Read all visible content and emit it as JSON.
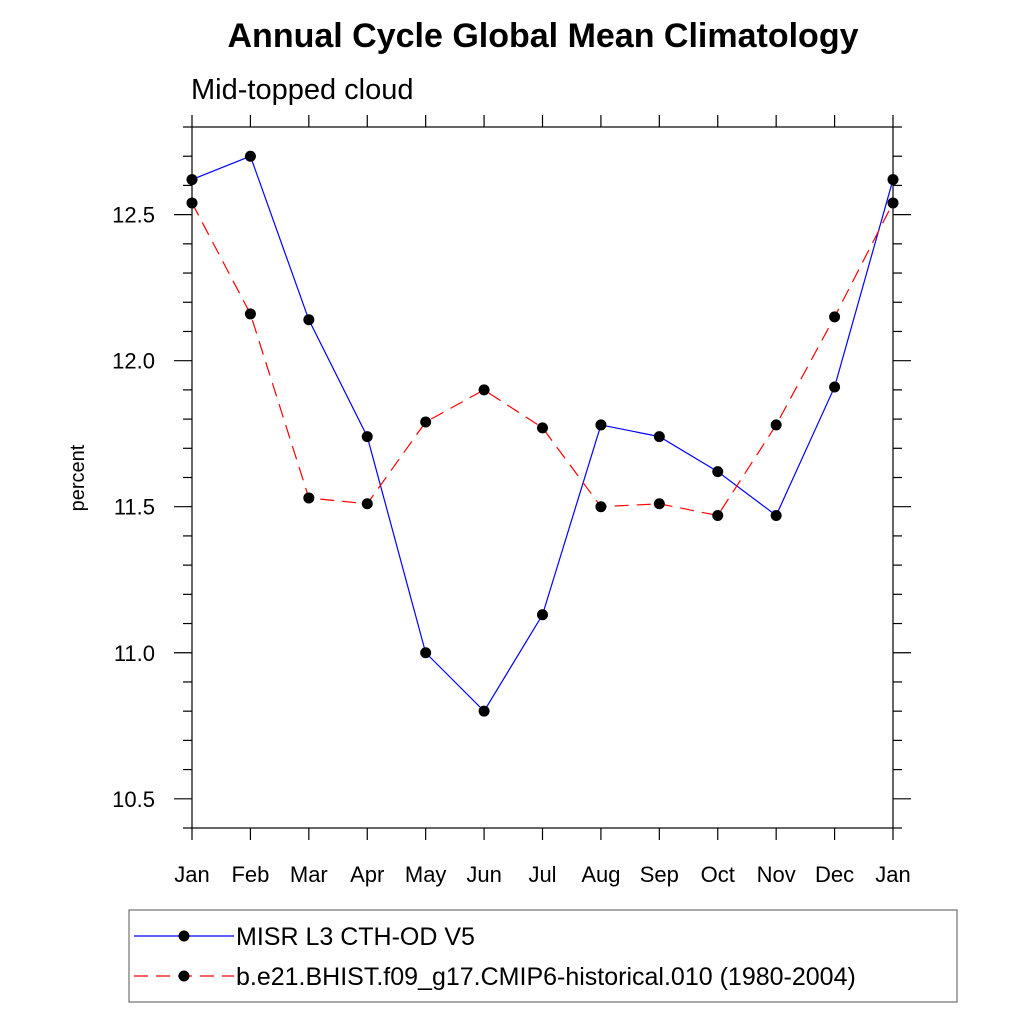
{
  "chart_data": {
    "type": "line",
    "title": "Annual Cycle Global Mean Climatology",
    "subtitle": "Mid-topped cloud",
    "xlabel": "",
    "ylabel": "percent",
    "categories": [
      "Jan",
      "Feb",
      "Mar",
      "Apr",
      "May",
      "Jun",
      "Jul",
      "Aug",
      "Sep",
      "Oct",
      "Nov",
      "Dec",
      "Jan"
    ],
    "ylim": [
      10.4,
      12.8
    ],
    "yticks": [
      10.5,
      11.0,
      11.5,
      12.0,
      12.5
    ],
    "ytick_labels": [
      "10.5",
      "11.0",
      "11.5",
      "12.0",
      "12.5"
    ],
    "y_minor_step": 0.1,
    "grid": false,
    "legend_position": "bottom",
    "series": [
      {
        "name": "MISR L3 CTH-OD V5",
        "color": "#0000ff",
        "dash": "solid",
        "marker": "filled-circle",
        "values": [
          12.62,
          12.7,
          12.14,
          11.74,
          11.0,
          10.8,
          11.13,
          11.78,
          11.74,
          11.62,
          11.47,
          11.91,
          12.62
        ]
      },
      {
        "name": "b.e21.BHIST.f09_g17.CMIP6-historical.010 (1980-2004)",
        "color": "#ff0000",
        "dash": "dashed",
        "marker": "filled-circle",
        "values": [
          12.54,
          12.16,
          11.53,
          11.51,
          11.79,
          11.9,
          11.77,
          11.5,
          11.51,
          11.47,
          11.78,
          12.15,
          12.54
        ]
      }
    ]
  }
}
